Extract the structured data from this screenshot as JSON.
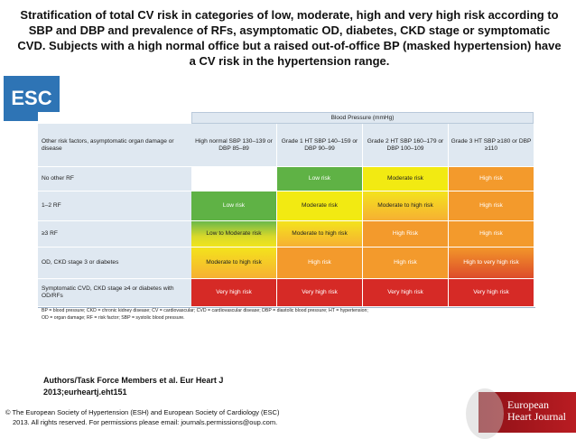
{
  "slide": {
    "title": "Stratification of total CV risk in categories of low, moderate, high and very high risk according to SBP and DBP and prevalence of RFs, asymptomatic OD, diabetes, CKD stage or symptomatic CVD. Subjects with a high normal office but a raised out-of-office BP (masked hypertension) have a CV risk in the hypertension range.",
    "badge": "ESC",
    "authors": "Authors/Task Force Members et al. Eur Heart J 2013;eurheartj.eht151",
    "copyright_line1": "© The European Society of Hypertension (ESH) and European Society of Cardiology (ESC)",
    "copyright_line2": "2013. All rights reserved. For permissions please email: journals.permissions@oup.com.",
    "logo_line1": "European",
    "logo_line2": "Heart Journal"
  },
  "table": {
    "bp_header": "Blood Pressure (mmHg)",
    "corner_header": "Other risk factors, asymptomatic organ damage or disease",
    "columns": [
      "High normal SBP 130–139 or DBP 85–89",
      "Grade 1 HT SBP 140–159 or DBP 90–99",
      "Grade 2 HT SBP 160–179 or DBP 100–109",
      "Grade 3 HT SBP ≥180 or DBP ≥110"
    ],
    "rows": [
      {
        "label": "No other RF",
        "cells": [
          "",
          "Low risk",
          "Moderate risk",
          "High risk"
        ]
      },
      {
        "label": "1–2 RF",
        "cells": [
          "Low risk",
          "Moderate risk",
          "Moderate to high risk",
          "High risk"
        ]
      },
      {
        "label": "≥3 RF",
        "cells": [
          "Low to Moderate risk",
          "Moderate to high risk",
          "High Risk",
          "High risk"
        ]
      },
      {
        "label": "OD, CKD stage 3 or diabetes",
        "cells": [
          "Moderate to high risk",
          "High risk",
          "High risk",
          "High to very high risk"
        ]
      },
      {
        "label": "Symptomatic CVD, CKD stage ≥4 or diabetes with OD/RFs",
        "cells": [
          "Very high risk",
          "Very high risk",
          "Very high risk",
          "Very high risk"
        ]
      }
    ],
    "legend_line1": "BP = blood pressure; CKD = chronic kidney disease; CV = cardiovascular; CVD = cardiovascular disease; DBP = diastolic blood pressure; HT = hypertension;",
    "legend_line2": "OD = organ damage; RF = risk factor; SBP = systolic blood pressure."
  },
  "colors": {
    "badge": "#2e74b5",
    "header_fill": "#dfe8f1",
    "low": "#5fb245",
    "moderate": "#f2ea12",
    "high": "#f39a2c",
    "very_high": "#d62a26"
  }
}
